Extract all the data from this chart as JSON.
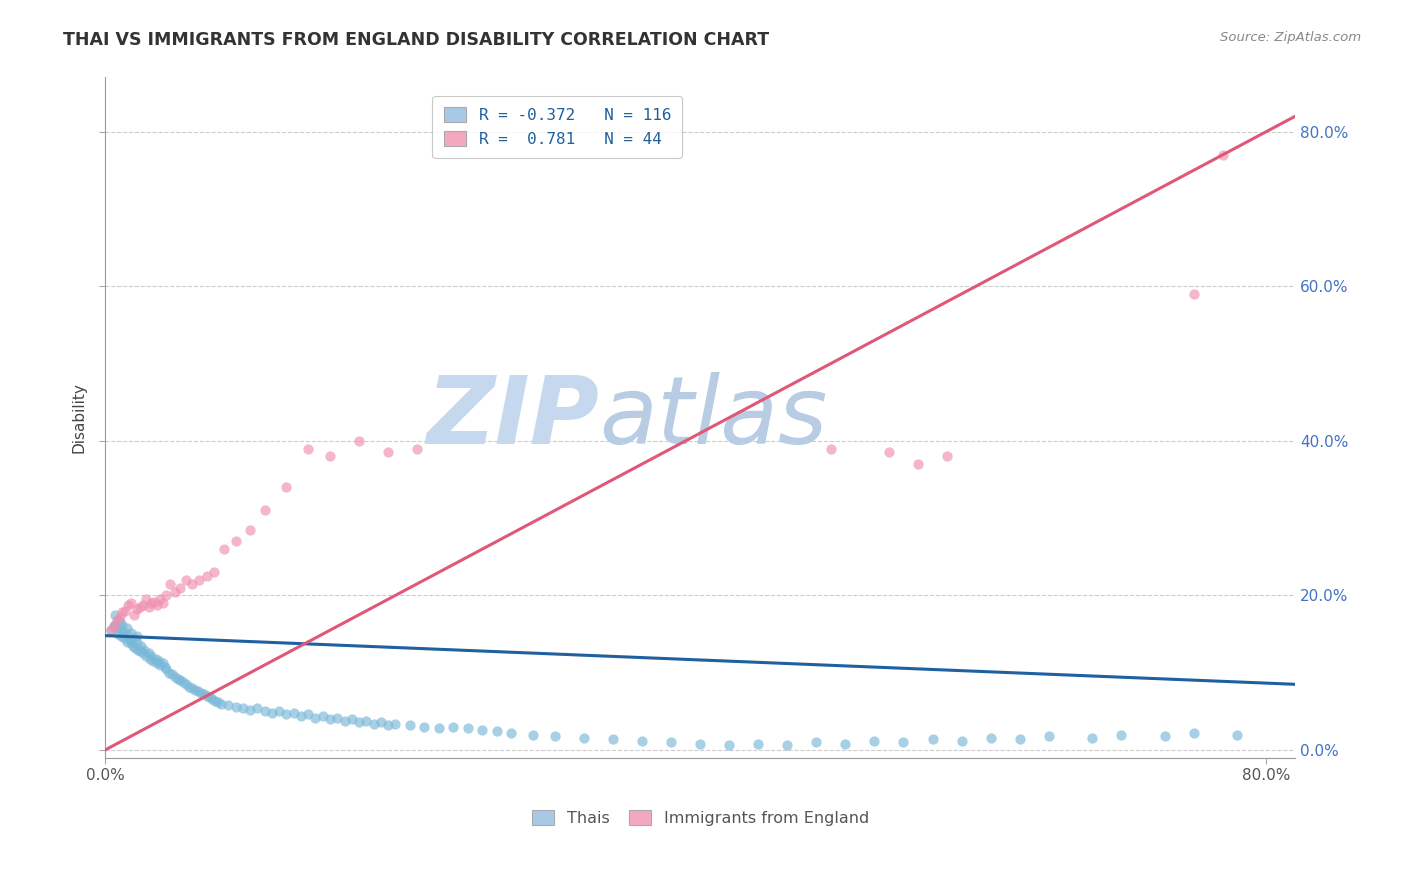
{
  "title": "THAI VS IMMIGRANTS FROM ENGLAND DISABILITY CORRELATION CHART",
  "source": "Source: ZipAtlas.com",
  "ylabel": "Disability",
  "xlim": [
    0.0,
    0.82
  ],
  "ylim": [
    -0.01,
    0.87
  ],
  "x_ticks": [
    0.0,
    0.8
  ],
  "x_tick_labels": [
    "0.0%",
    "80.0%"
  ],
  "y_ticks": [
    0.0,
    0.2,
    0.4,
    0.6,
    0.8
  ],
  "y_tick_labels": [
    "0.0%",
    "20.0%",
    "40.0%",
    "60.0%",
    "80.0%"
  ],
  "legend_line1": "R = -0.372   N = 116",
  "legend_line2": "R =  0.781   N = 44",
  "legend_color1": "#a8c8e8",
  "legend_color2": "#f4a8c0",
  "legend_labels_bottom": [
    "Thais",
    "Immigrants from England"
  ],
  "thai_color": "#7ab8d8",
  "england_color": "#f090b0",
  "thai_line_color": "#2060a0",
  "england_line_color": "#e05878",
  "thai_line_x": [
    0.0,
    0.82
  ],
  "thai_line_y": [
    0.148,
    0.085
  ],
  "england_line_x": [
    0.0,
    0.82
  ],
  "england_line_y": [
    0.0,
    0.82
  ],
  "thai_scatter_x": [
    0.004,
    0.006,
    0.007,
    0.008,
    0.009,
    0.01,
    0.011,
    0.012,
    0.013,
    0.014,
    0.015,
    0.016,
    0.017,
    0.018,
    0.019,
    0.02,
    0.021,
    0.022,
    0.023,
    0.024,
    0.025,
    0.026,
    0.027,
    0.028,
    0.03,
    0.031,
    0.032,
    0.033,
    0.035,
    0.036,
    0.037,
    0.038,
    0.04,
    0.041,
    0.042,
    0.044,
    0.046,
    0.048,
    0.05,
    0.052,
    0.054,
    0.056,
    0.058,
    0.06,
    0.062,
    0.064,
    0.066,
    0.068,
    0.07,
    0.072,
    0.074,
    0.076,
    0.078,
    0.08,
    0.085,
    0.09,
    0.095,
    0.1,
    0.105,
    0.11,
    0.115,
    0.12,
    0.125,
    0.13,
    0.135,
    0.14,
    0.145,
    0.15,
    0.155,
    0.16,
    0.165,
    0.17,
    0.175,
    0.18,
    0.185,
    0.19,
    0.195,
    0.2,
    0.21,
    0.22,
    0.23,
    0.24,
    0.25,
    0.26,
    0.27,
    0.28,
    0.295,
    0.31,
    0.33,
    0.35,
    0.37,
    0.39,
    0.41,
    0.43,
    0.45,
    0.47,
    0.49,
    0.51,
    0.53,
    0.55,
    0.57,
    0.59,
    0.61,
    0.63,
    0.65,
    0.68,
    0.7,
    0.73,
    0.75,
    0.78,
    0.007,
    0.009,
    0.012,
    0.015,
    0.018,
    0.022
  ],
  "thai_scatter_y": [
    0.155,
    0.16,
    0.162,
    0.158,
    0.15,
    0.165,
    0.148,
    0.155,
    0.145,
    0.152,
    0.14,
    0.148,
    0.142,
    0.138,
    0.135,
    0.145,
    0.132,
    0.138,
    0.13,
    0.128,
    0.135,
    0.125,
    0.13,
    0.122,
    0.125,
    0.118,
    0.122,
    0.115,
    0.118,
    0.112,
    0.115,
    0.11,
    0.112,
    0.108,
    0.105,
    0.1,
    0.098,
    0.095,
    0.092,
    0.09,
    0.088,
    0.085,
    0.082,
    0.08,
    0.078,
    0.076,
    0.074,
    0.072,
    0.07,
    0.068,
    0.066,
    0.064,
    0.062,
    0.06,
    0.058,
    0.056,
    0.054,
    0.052,
    0.055,
    0.05,
    0.048,
    0.05,
    0.046,
    0.048,
    0.044,
    0.046,
    0.042,
    0.044,
    0.04,
    0.042,
    0.038,
    0.04,
    0.036,
    0.038,
    0.034,
    0.036,
    0.032,
    0.034,
    0.032,
    0.03,
    0.028,
    0.03,
    0.028,
    0.026,
    0.024,
    0.022,
    0.02,
    0.018,
    0.016,
    0.014,
    0.012,
    0.01,
    0.008,
    0.006,
    0.008,
    0.006,
    0.01,
    0.008,
    0.012,
    0.01,
    0.014,
    0.012,
    0.016,
    0.014,
    0.018,
    0.016,
    0.02,
    0.018,
    0.022,
    0.02,
    0.175,
    0.168,
    0.162,
    0.158,
    0.152,
    0.148
  ],
  "england_scatter_x": [
    0.004,
    0.006,
    0.008,
    0.01,
    0.012,
    0.014,
    0.016,
    0.018,
    0.02,
    0.022,
    0.024,
    0.026,
    0.028,
    0.03,
    0.032,
    0.034,
    0.036,
    0.038,
    0.04,
    0.042,
    0.045,
    0.048,
    0.052,
    0.056,
    0.06,
    0.065,
    0.07,
    0.075,
    0.082,
    0.09,
    0.1,
    0.11,
    0.125,
    0.14,
    0.155,
    0.175,
    0.195,
    0.215,
    0.5,
    0.54,
    0.56,
    0.58,
    0.75,
    0.77
  ],
  "england_scatter_y": [
    0.155,
    0.16,
    0.168,
    0.172,
    0.178,
    0.18,
    0.188,
    0.19,
    0.175,
    0.182,
    0.185,
    0.188,
    0.195,
    0.185,
    0.19,
    0.192,
    0.188,
    0.195,
    0.19,
    0.2,
    0.215,
    0.205,
    0.21,
    0.22,
    0.215,
    0.22,
    0.225,
    0.23,
    0.26,
    0.27,
    0.285,
    0.31,
    0.34,
    0.39,
    0.38,
    0.4,
    0.385,
    0.39,
    0.39,
    0.385,
    0.37,
    0.38,
    0.59,
    0.77
  ],
  "scatter_size": 55,
  "scatter_alpha": 0.65,
  "watermark_zip": "ZIP",
  "watermark_atlas": "atlas",
  "watermark_color": "#ccdff0",
  "grid_color": "#cccccc",
  "grid_style": "--"
}
